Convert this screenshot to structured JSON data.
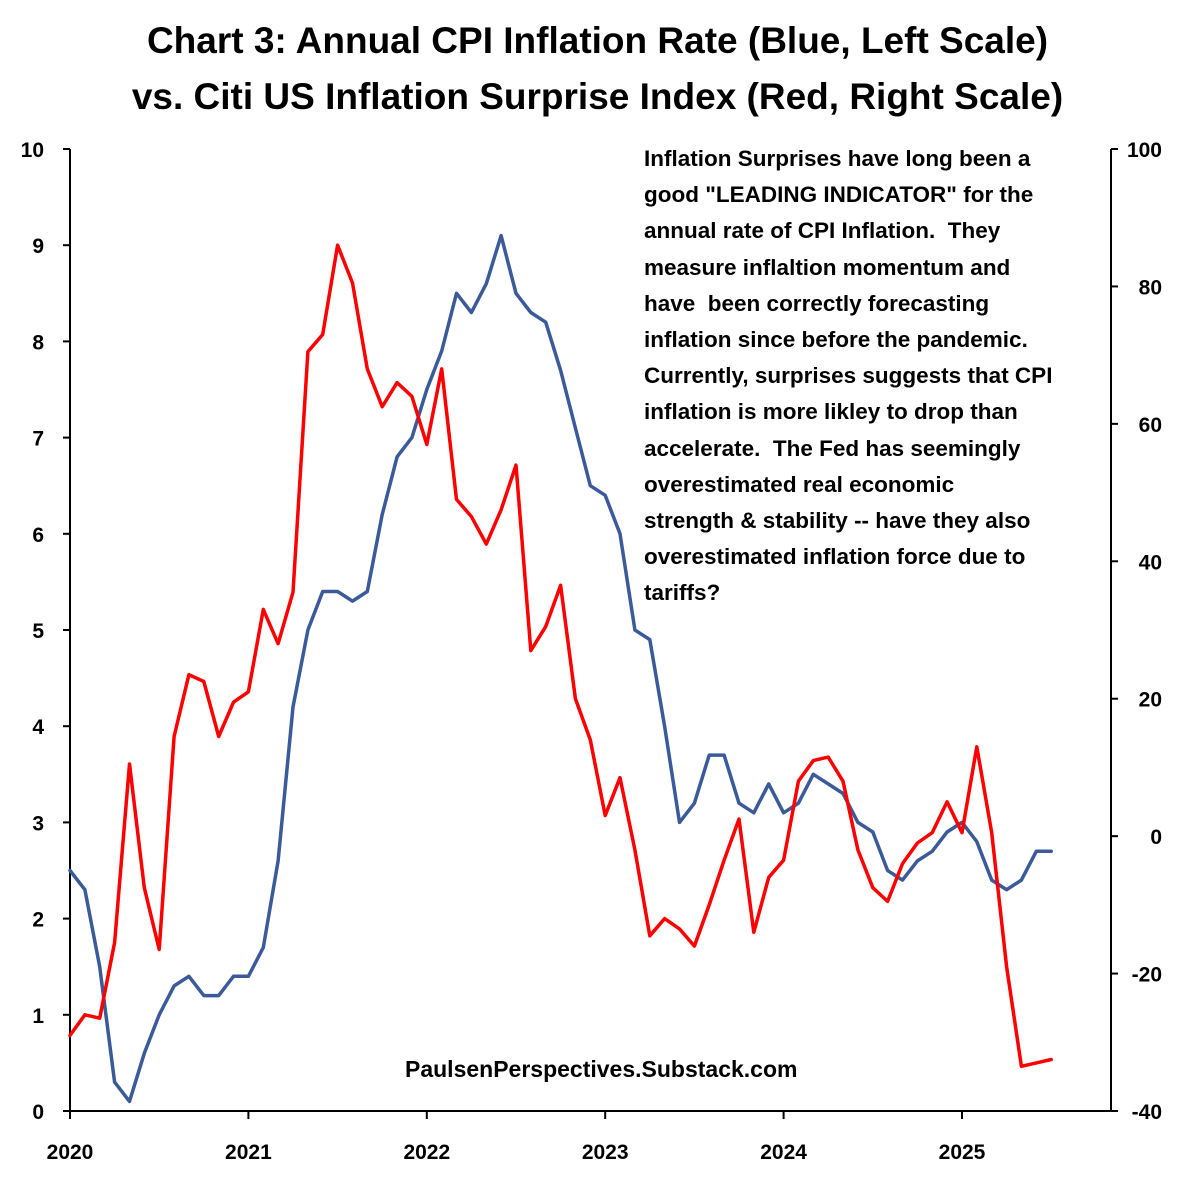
{
  "title_line1": "Chart 3: Annual CPI Inflation Rate (Blue, Left Scale)",
  "title_line2": "vs. Citi US Inflation Surprise Index (Red, Right Scale)",
  "annotation": "Inflation Surprises have long been a\ngood \"LEADING INDICATOR\" for the\nannual rate of CPI Inflation.  They\nmeasure inflaltion momentum and\nhave  been correctly forecasting\ninflation since before the pandemic.\nCurrently, surprises suggests that CPI\ninflation is more likley to drop than\naccelerate.  The Fed has seemingly\noverestimated real economic\nstrength & stability -- have they also\noverestimated inflation force due to\ntariffs?",
  "source": "PaulsenPerspectives.Substack.com",
  "colors": {
    "cpi": "#3a5a9a",
    "surprise": "#ff0000"
  },
  "chart_data": {
    "type": "line",
    "title": "Chart 3: Annual CPI Inflation Rate (Blue, Left Scale) vs. Citi US Inflation Surprise Index (Red, Right Scale)",
    "x_start": 2020.0,
    "x_step_years": 0.08333,
    "xlim": [
      2020.0,
      2025.92
    ],
    "x_ticks": [
      2020,
      2021,
      2022,
      2023,
      2024,
      2025
    ],
    "x_tick_labels": [
      "2020",
      "2021",
      "2022",
      "2023",
      "2024",
      "2025"
    ],
    "y_left": {
      "lim": [
        0,
        10
      ],
      "ticks": [
        0,
        1,
        2,
        3,
        4,
        5,
        6,
        7,
        8,
        9,
        10
      ],
      "tick_labels": [
        "0",
        "1",
        "2",
        "3",
        "4",
        "5",
        "6",
        "7",
        "8",
        "9",
        "10"
      ]
    },
    "y_right": {
      "lim": [
        -40,
        100
      ],
      "ticks": [
        -40,
        -20,
        0,
        20,
        40,
        60,
        80,
        100
      ],
      "tick_labels": [
        "-40",
        "-20",
        "0",
        "20",
        "40",
        "60",
        "80",
        "100"
      ]
    },
    "series": [
      {
        "name": "Annual CPI Inflation Rate",
        "axis": "left",
        "color": "#3a5a9a",
        "values": [
          2.5,
          2.3,
          1.5,
          0.3,
          0.1,
          0.6,
          1.0,
          1.3,
          1.4,
          1.2,
          1.2,
          1.4,
          1.4,
          1.7,
          2.6,
          4.2,
          5.0,
          5.4,
          5.4,
          5.3,
          5.4,
          6.2,
          6.8,
          7.0,
          7.5,
          7.9,
          8.5,
          8.3,
          8.6,
          9.1,
          8.5,
          8.3,
          8.2,
          7.7,
          7.1,
          6.5,
          6.4,
          6.0,
          5.0,
          4.9,
          4.0,
          3.0,
          3.2,
          3.7,
          3.7,
          3.2,
          3.1,
          3.4,
          3.1,
          3.2,
          3.5,
          3.4,
          3.3,
          3.0,
          2.9,
          2.5,
          2.4,
          2.6,
          2.7,
          2.9,
          3.0,
          2.8,
          2.4,
          2.3,
          2.4,
          2.7,
          2.7
        ]
      },
      {
        "name": "Citi US Inflation Surprise Index",
        "axis": "right",
        "color": "#ff0000",
        "values": [
          -29,
          -26,
          -26.5,
          -15.5,
          10.5,
          -7.5,
          -16.5,
          14.5,
          23.5,
          22.5,
          14.5,
          19.5,
          21,
          33,
          28,
          35.5,
          70.5,
          73,
          86,
          80.5,
          68,
          62.5,
          66,
          64,
          57,
          68,
          49,
          46.5,
          42.5,
          47.5,
          54,
          27,
          30.5,
          36.5,
          20,
          14,
          3,
          8.5,
          -2,
          -14.5,
          -12,
          -13.5,
          -16,
          -10,
          -3.5,
          2.5,
          -14,
          -6,
          -3.5,
          8,
          11,
          11.5,
          8,
          -2,
          -7.5,
          -9.5,
          -4,
          -1,
          0.5,
          5,
          0.5,
          13,
          0.5,
          -19,
          -33.5,
          -33,
          -32.5
        ]
      }
    ]
  }
}
